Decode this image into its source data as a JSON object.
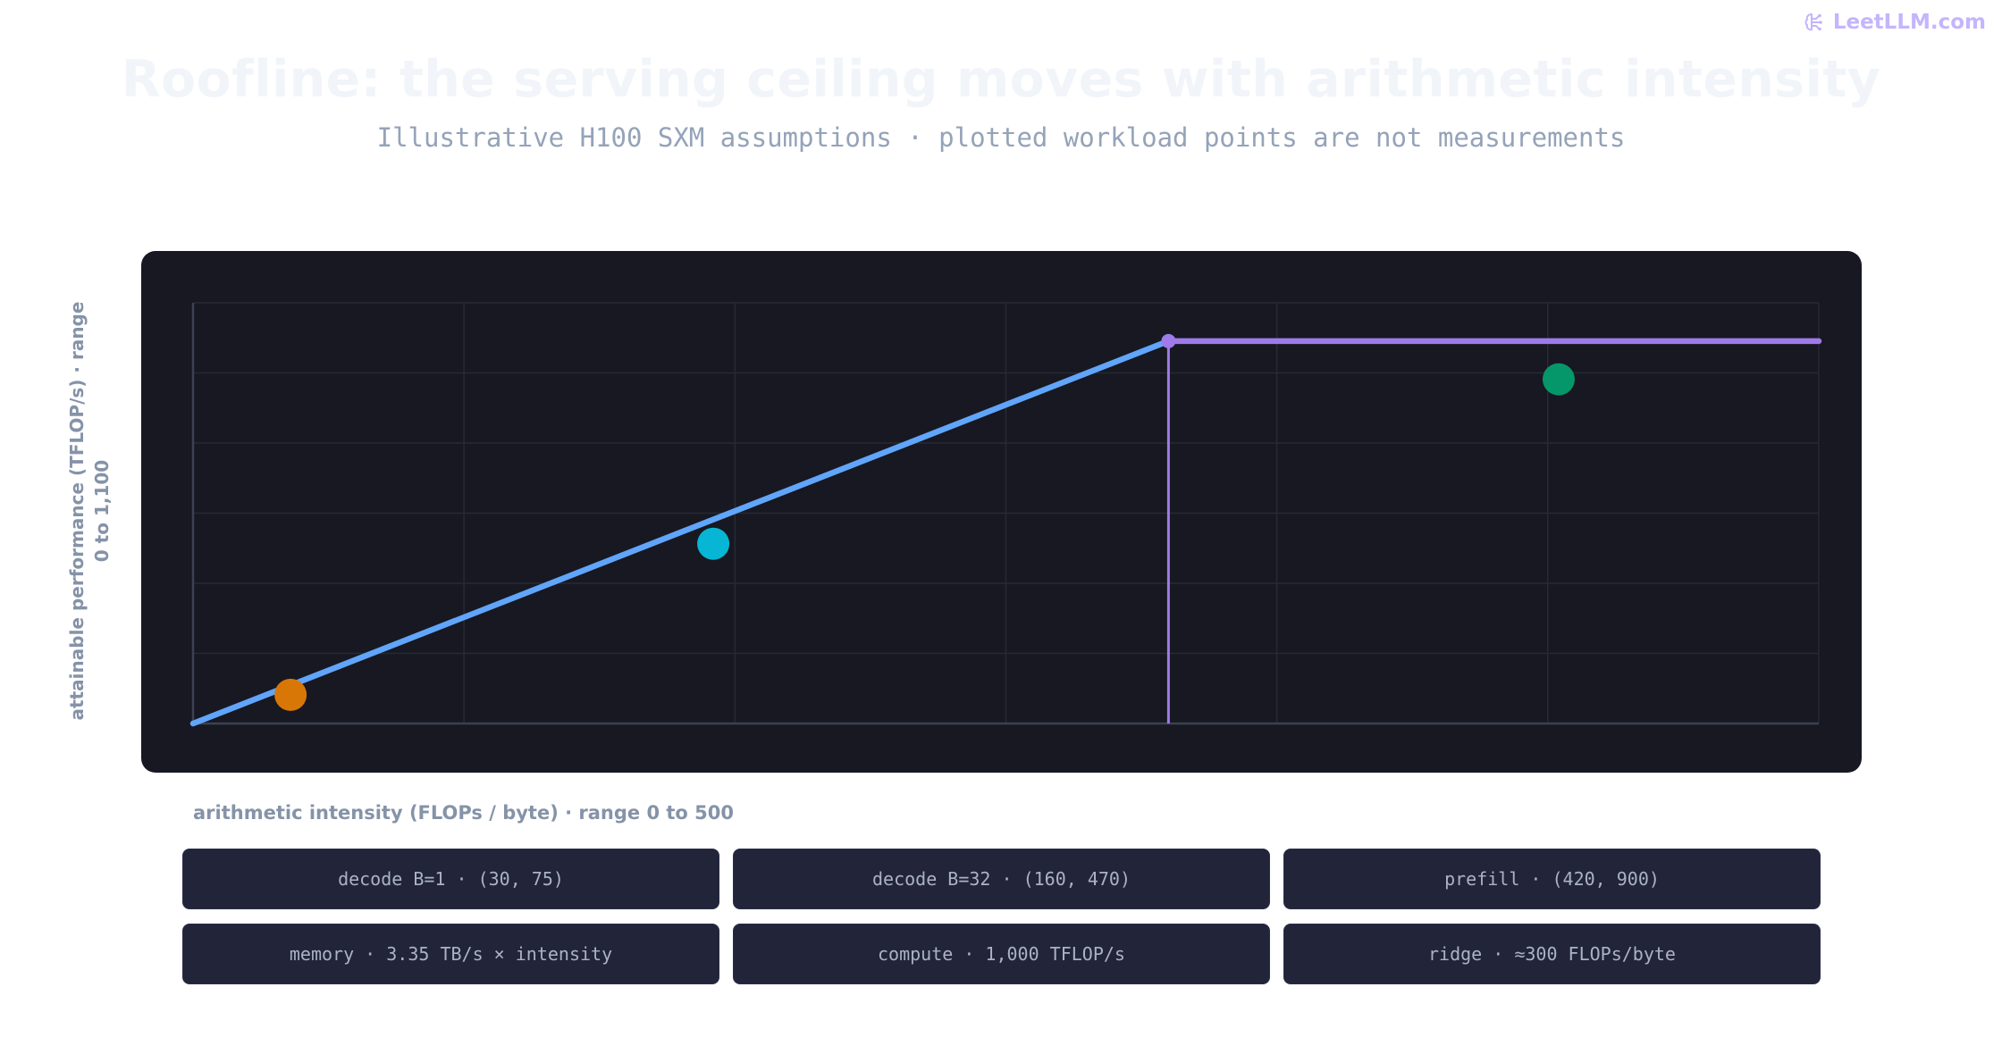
{
  "brand": {
    "text": "LeetLLM.com",
    "icon": "brain-icon",
    "color": "#c4b5fd"
  },
  "title": "Roofline: the serving ceiling moves with arithmetic intensity",
  "subtitle": "Illustrative H100 SXM assumptions · plotted workload points are not measurements",
  "colors": {
    "panel_bg": "#171821",
    "memory_line": "#60a5fa",
    "compute_line": "#9f7aea",
    "card_bg": "#22243a"
  },
  "chart_data": {
    "type": "line",
    "title": "Roofline: the serving ceiling moves with arithmetic intensity",
    "subtitle": "Illustrative H100 SXM assumptions · plotted workload points are not measurements",
    "xlabel": "arithmetic intensity (FLOPs / byte) · range 0 to 500",
    "ylabel": "attainable performance (TFLOP/s) · range 0 to 1,100",
    "xlim": [
      0,
      500
    ],
    "ylim": [
      0,
      1100
    ],
    "grid": true,
    "x_grid_step": 83.33,
    "y_grid_step": 183.33,
    "roofline": {
      "memory": {
        "slope_tflops_per_intensity": 3.35,
        "from": [
          0,
          0
        ],
        "to": [
          300,
          1000
        ],
        "color": "#60a5fa"
      },
      "compute": {
        "value": 1000,
        "from": [
          300,
          1000
        ],
        "to": [
          500,
          1000
        ],
        "color": "#9f7aea"
      },
      "ridge": {
        "x": 300,
        "y": 1000,
        "color": "#9f7aea"
      }
    },
    "points": [
      {
        "label": "decode B=1",
        "x": 30,
        "y": 75,
        "color": "#d97706"
      },
      {
        "label": "decode B=32",
        "x": 160,
        "y": 470,
        "color": "#06b6d4"
      },
      {
        "label": "prefill",
        "x": 420,
        "y": 900,
        "color": "#059669"
      }
    ]
  },
  "cards": [
    "decode B=1 · (30, 75)",
    "decode B=32 · (160, 470)",
    "prefill · (420, 900)",
    "memory · 3.35 TB/s × intensity",
    "compute · 1,000 TFLOP/s",
    "ridge · ≈300 FLOPs/byte"
  ]
}
